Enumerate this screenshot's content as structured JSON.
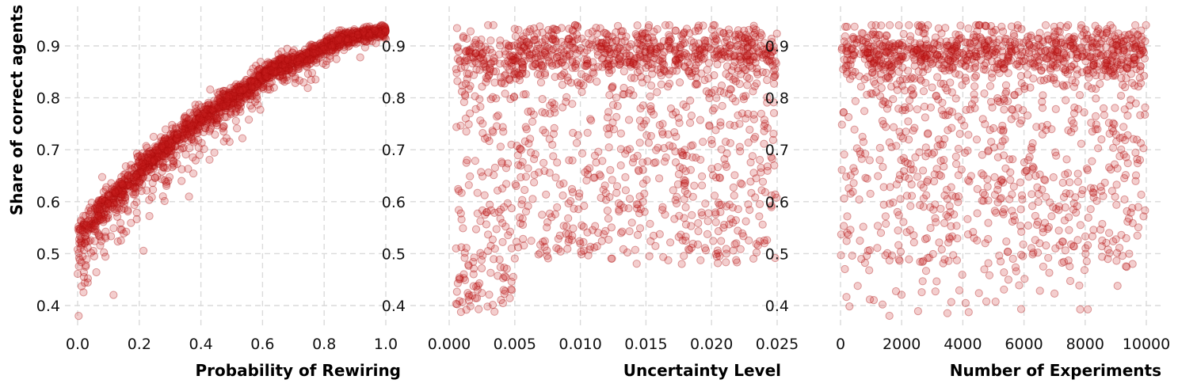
{
  "figure": {
    "marker_color": "#b30f0f",
    "marker_alpha": 0.25
  },
  "chart_data": [
    {
      "type": "scatter",
      "title": "",
      "xlabel": "Probability of Rewiring",
      "ylabel": "Share of correct agents",
      "xlim": [
        -0.02,
        1.02
      ],
      "ylim": [
        0.36,
        0.97
      ],
      "xticks": [
        "0.0",
        "0.2",
        "0.4",
        "0.6",
        "0.8",
        "1.0"
      ],
      "xtick_values": [
        0.0,
        0.2,
        0.4,
        0.6,
        0.8,
        1.0
      ],
      "yticks": [
        "0.4",
        "0.5",
        "0.6",
        "0.7",
        "0.8",
        "0.9"
      ],
      "ytick_values": [
        0.4,
        0.5,
        0.6,
        0.7,
        0.8,
        0.9
      ],
      "grid": true,
      "n_points": 2000,
      "trend": "concave increasing: ~0.52 at x=0, ~0.66 at x=0.2, ~0.76 at x=0.4, ~0.84 at x=0.6, ~0.90 at x=0.8, ~0.93 at x=1.0; lower tail down to ~0.38 near x=0",
      "series": [
        {
          "x": [
            0.0,
            0.02,
            0.05,
            0.1,
            0.15,
            0.2,
            0.25,
            0.3,
            0.35,
            0.4,
            0.45,
            0.5,
            0.55,
            0.6,
            0.65,
            0.7,
            0.75,
            0.8,
            0.85,
            0.9,
            0.95,
            1.0
          ],
          "y": [
            0.52,
            0.55,
            0.57,
            0.6,
            0.63,
            0.66,
            0.69,
            0.71,
            0.74,
            0.76,
            0.78,
            0.8,
            0.82,
            0.84,
            0.86,
            0.87,
            0.88,
            0.9,
            0.91,
            0.92,
            0.925,
            0.93
          ]
        }
      ]
    },
    {
      "type": "scatter",
      "title": "",
      "xlabel": "Uncertainty Level",
      "ylabel": "",
      "xlim": [
        0.0,
        0.0255
      ],
      "ylim": [
        0.36,
        0.97
      ],
      "xticks": [
        "0.000",
        "0.005",
        "0.010",
        "0.015",
        "0.020",
        "0.025"
      ],
      "xtick_values": [
        0.0,
        0.005,
        0.01,
        0.015,
        0.02,
        0.025
      ],
      "yticks": [
        "0.4",
        "0.5",
        "0.6",
        "0.7",
        "0.8",
        "0.9"
      ],
      "ytick_values": [
        0.4,
        0.5,
        0.6,
        0.7,
        0.8,
        0.9
      ],
      "grid": true,
      "n_points": 1500,
      "x_range": [
        0.0005,
        0.025
      ],
      "y_range": [
        0.38,
        0.94
      ],
      "density": "dense band near 0.87-0.93, spread down to ~0.5; lower values concentrated at x < 0.005"
    },
    {
      "type": "scatter",
      "title": "",
      "xlabel": "Number of Experiments",
      "ylabel": "",
      "xlim": [
        -100,
        10500
      ],
      "ylim": [
        0.36,
        0.97
      ],
      "xticks": [
        "0",
        "2000",
        "4000",
        "6000",
        "8000",
        "10000"
      ],
      "xtick_values": [
        0,
        2000,
        4000,
        6000,
        8000,
        10000
      ],
      "yticks": [
        "0.4",
        "0.5",
        "0.6",
        "0.7",
        "0.8",
        "0.9"
      ],
      "ytick_values": [
        0.4,
        0.5,
        0.6,
        0.7,
        0.8,
        0.9
      ],
      "grid": true,
      "n_points": 1500,
      "x_range": [
        0,
        10000
      ],
      "y_range": [
        0.38,
        0.94
      ],
      "density": "uniform in x; dense band near 0.88-0.93, spread down to ~0.45"
    }
  ]
}
